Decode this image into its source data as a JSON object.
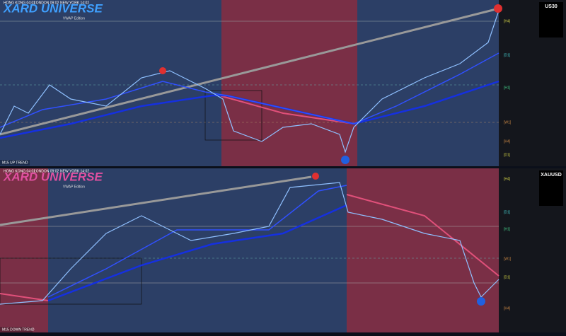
{
  "top": {
    "title": "XARD UNIVERSE",
    "subtitle": "VWAP Edition",
    "sessions": [
      "HONG KONG 04:02",
      "LONDON 09:02",
      "NEW YORK 14:02"
    ],
    "trend": "M15 UP TREND",
    "symbol": "US30",
    "levels": [
      "[H4]",
      "[D1]",
      "[H1]",
      "[W1]",
      "[D1]",
      "[H4]"
    ]
  },
  "bottom": {
    "title": "XARD UNIVERSE",
    "subtitle": "VWAP Edition",
    "sessions": [
      "HONG KONG 04:02",
      "LONDON 09:02",
      "NEW YORK 14:02"
    ],
    "trend": "M15 DOWN TREND",
    "symbol": "XAUUSD",
    "levels": [
      "[H4]",
      "[D1]",
      "[H1]",
      "[W1]",
      "[D1]",
      "[H4]"
    ]
  }
}
